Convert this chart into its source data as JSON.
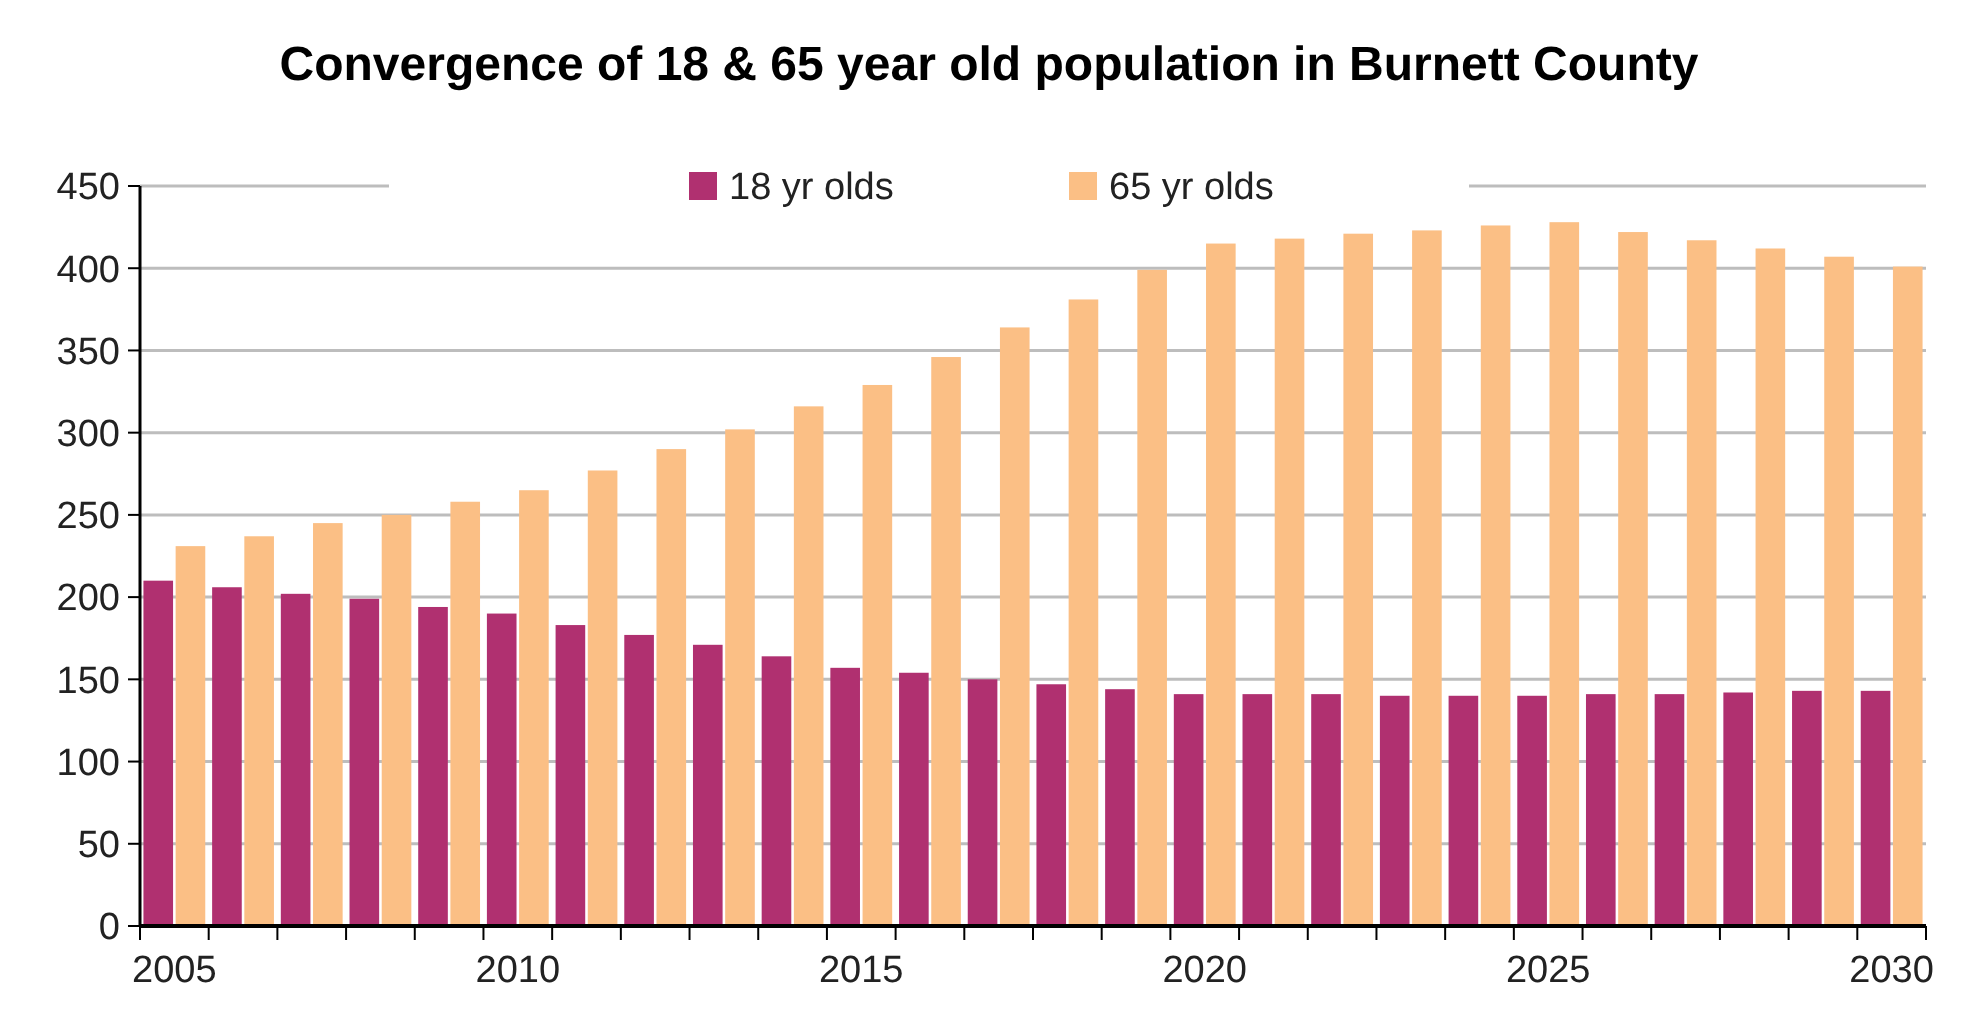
{
  "chart_data": {
    "type": "bar",
    "title": "Convergence of 18 & 65 year old population in Burnett County",
    "categories": [
      "2005",
      null,
      null,
      null,
      null,
      "2010",
      null,
      null,
      null,
      null,
      "2015",
      null,
      null,
      null,
      null,
      "2020",
      null,
      null,
      null,
      null,
      "2025",
      null,
      null,
      null,
      null,
      "2030"
    ],
    "series": [
      {
        "name": "18 yr olds",
        "color": "#b03070",
        "values": [
          210,
          206,
          202,
          199,
          194,
          190,
          183,
          177,
          171,
          164,
          157,
          154,
          150,
          147,
          144,
          141,
          141,
          141,
          140,
          140,
          140,
          141,
          141,
          142,
          143,
          143
        ]
      },
      {
        "name": "65 yr olds",
        "color": "#fbbf85",
        "values": [
          231,
          237,
          245,
          250,
          258,
          265,
          277,
          290,
          302,
          316,
          329,
          346,
          364,
          381,
          399,
          415,
          418,
          421,
          423,
          426,
          428,
          422,
          417,
          412,
          407,
          401
        ]
      }
    ],
    "ylim": [
      0,
      450
    ],
    "yticks": [
      0,
      50,
      100,
      150,
      200,
      250,
      300,
      350,
      400,
      450
    ],
    "grid": "y",
    "legend": "top"
  }
}
